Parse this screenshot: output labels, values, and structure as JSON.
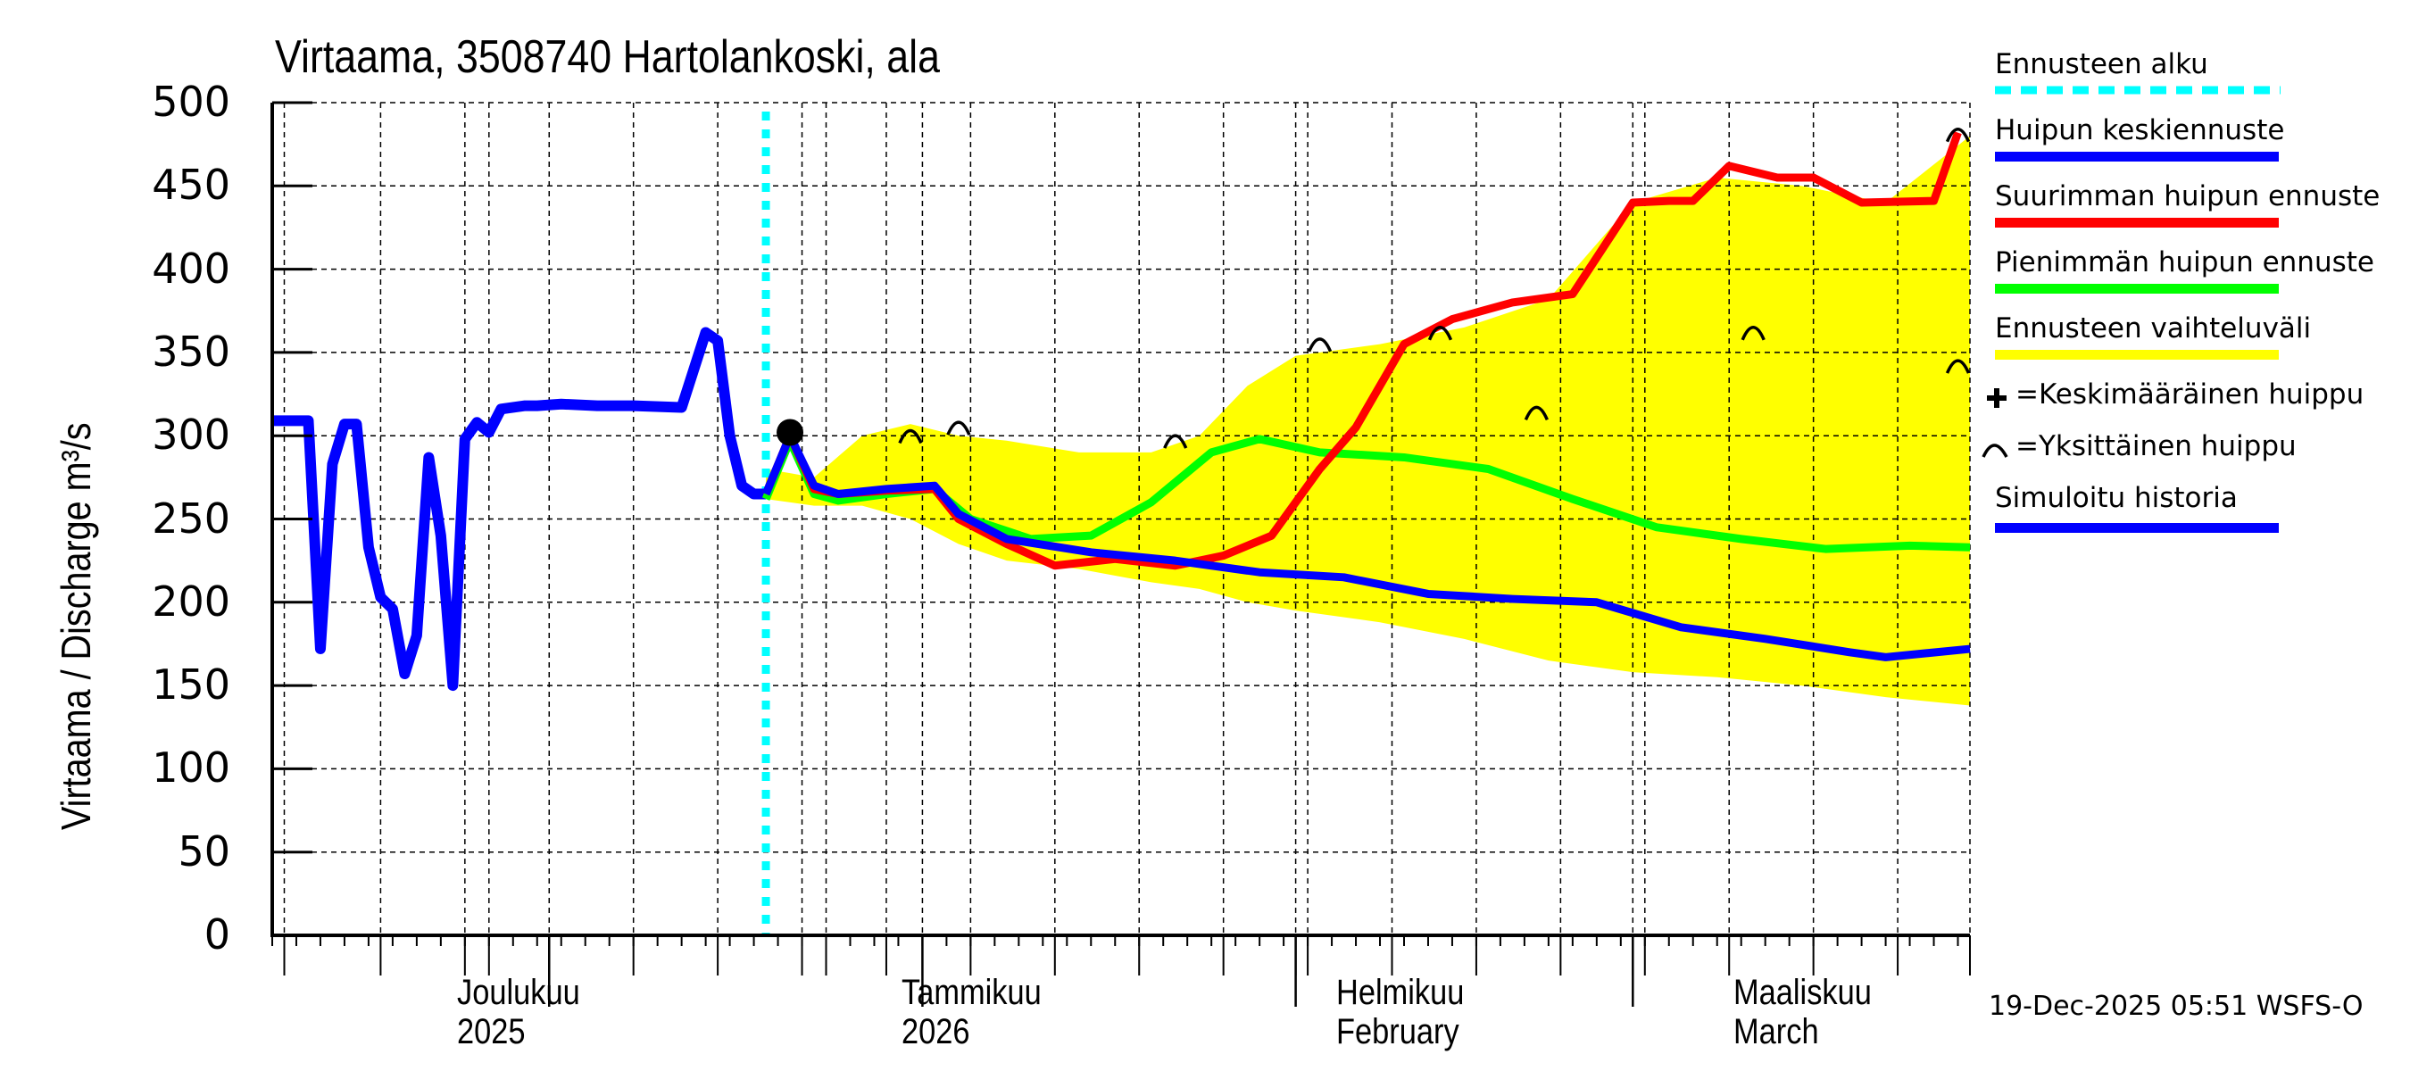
{
  "title": "Virtaama, 3508740 Hartolankoski, ala",
  "y_axis": {
    "label": "Virtaama / Discharge    m³/s",
    "ticks": [
      "500",
      "450",
      "400",
      "350",
      "300",
      "250",
      "200",
      "150",
      "100",
      "50",
      "0"
    ]
  },
  "x_axis": {
    "months": [
      {
        "line1": "Joulukuu",
        "line2": "2025"
      },
      {
        "line1": "Tammikuu",
        "line2": "2026"
      },
      {
        "line1": "Helmikuu",
        "line2": "February"
      },
      {
        "line1": "Maaliskuu",
        "line2": "March"
      }
    ]
  },
  "legend": {
    "forecast_start": "Ennusteen alku",
    "mean_peak": "Huipun keskiennuste",
    "max_peak": "Suurimman huipun ennuste",
    "min_peak": "Pienimmän huipun ennuste",
    "range": "Ennusteen vaihteluväli",
    "avg_peak_marker": "=Keskimääräinen huippu",
    "single_peak_marker": "=Yksittäinen huippu",
    "sim_history": "Simuloitu historia"
  },
  "footer": "19-Dec-2025 05:51 WSFS-O",
  "colors": {
    "forecast_start": "#00ffff",
    "mean": "#0000ff",
    "max": "#ff0000",
    "min": "#00ff00",
    "range": "#ffff00",
    "history": "#0000ff",
    "marker": "#000000"
  },
  "chart_data": {
    "type": "line",
    "title": "Virtaama, 3508740 Hartolankoski, ala",
    "xlabel": "",
    "ylabel": "Virtaama / Discharge m³/s",
    "ylim": [
      0,
      500
    ],
    "xlim": [
      "2025-11-08",
      "2026-03-29"
    ],
    "grid": true,
    "legend_position": "right",
    "forecast_start": "2025-12-19",
    "x_tick_labels": [
      "Joulukuu 2025",
      "Tammikuu 2026",
      "Helmikuu February",
      "Maaliskuu March"
    ],
    "series": [
      {
        "name": "Simuloitu historia",
        "color": "#0000ff",
        "x": [
          "2025-11-08",
          "2025-11-10",
          "2025-11-11",
          "2025-11-12",
          "2025-11-13",
          "2025-11-14",
          "2025-11-15",
          "2025-11-16",
          "2025-11-17",
          "2025-11-18",
          "2025-11-19",
          "2025-11-20",
          "2025-11-21",
          "2025-11-22",
          "2025-11-23",
          "2025-11-24",
          "2025-11-25",
          "2025-11-26",
          "2025-11-27",
          "2025-11-28",
          "2025-11-29",
          "2025-11-30",
          "2025-12-02",
          "2025-12-05",
          "2025-12-08",
          "2025-12-12",
          "2025-12-14",
          "2025-12-15",
          "2025-12-16",
          "2025-12-17",
          "2025-12-18",
          "2025-12-19"
        ],
        "values": [
          309,
          309,
          309,
          172,
          283,
          307,
          307,
          233,
          203,
          196,
          157,
          180,
          287,
          240,
          150,
          298,
          308,
          302,
          316,
          317,
          318,
          318,
          319,
          318,
          318,
          317,
          362,
          357,
          300,
          270,
          265,
          265
        ]
      },
      {
        "name": "Huipun keskiennuste",
        "color": "#0000ff",
        "x": [
          "2025-12-19",
          "2025-12-21",
          "2025-12-23",
          "2025-12-25",
          "2025-12-29",
          "2026-01-02",
          "2026-01-04",
          "2026-01-08",
          "2026-01-15",
          "2026-01-22",
          "2026-01-29",
          "2026-02-05",
          "2026-02-12",
          "2026-02-19",
          "2026-02-26",
          "2026-03-05",
          "2026-03-12",
          "2026-03-19",
          "2026-03-22",
          "2026-03-29"
        ],
        "values": [
          265,
          300,
          270,
          265,
          268,
          270,
          253,
          238,
          230,
          225,
          218,
          215,
          205,
          202,
          200,
          185,
          178,
          170,
          167,
          172
        ]
      },
      {
        "name": "Suurimman huipun ennuste",
        "color": "#ff0000",
        "x": [
          "2025-12-19",
          "2025-12-21",
          "2025-12-23",
          "2025-12-25",
          "2025-12-29",
          "2026-01-02",
          "2026-01-04",
          "2026-01-08",
          "2026-01-12",
          "2026-01-17",
          "2026-01-22",
          "2026-01-26",
          "2026-01-30",
          "2026-02-03",
          "2026-02-06",
          "2026-02-10",
          "2026-02-14",
          "2026-02-19",
          "2026-02-24",
          "2026-03-01",
          "2026-03-04",
          "2026-03-06",
          "2026-03-09",
          "2026-03-13",
          "2026-03-16",
          "2026-03-20",
          "2026-03-26",
          "2026-03-28"
        ],
        "values": [
          265,
          300,
          268,
          265,
          267,
          268,
          250,
          235,
          222,
          226,
          222,
          228,
          240,
          280,
          305,
          355,
          370,
          380,
          385,
          440,
          441,
          441,
          462,
          455,
          455,
          440,
          441,
          482
        ]
      },
      {
        "name": "Pienimmän huipun ennuste",
        "color": "#00ff00",
        "x": [
          "2025-12-19",
          "2025-12-21",
          "2025-12-23",
          "2025-12-25",
          "2025-12-29",
          "2026-01-02",
          "2026-01-05",
          "2026-01-10",
          "2026-01-15",
          "2026-01-20",
          "2026-01-25",
          "2026-01-29",
          "2026-02-03",
          "2026-02-10",
          "2026-02-17",
          "2026-02-24",
          "2026-03-03",
          "2026-03-10",
          "2026-03-17",
          "2026-03-24",
          "2026-03-29"
        ],
        "values": [
          262,
          297,
          265,
          261,
          265,
          268,
          250,
          238,
          240,
          260,
          290,
          298,
          290,
          287,
          280,
          262,
          245,
          238,
          232,
          234,
          233
        ]
      },
      {
        "name": "Ennusteen vaihteluväli",
        "color": "#ffff00",
        "type": "area",
        "x": [
          "2025-12-19",
          "2025-12-23",
          "2025-12-27",
          "2025-12-31",
          "2026-01-04",
          "2026-01-08",
          "2026-01-14",
          "2026-01-20",
          "2026-01-24",
          "2026-01-28",
          "2026-02-01",
          "2026-02-08",
          "2026-02-15",
          "2026-02-22",
          "2026-03-01",
          "2026-03-08",
          "2026-03-15",
          "2026-03-22",
          "2026-03-29"
        ],
        "upper": [
          280,
          275,
          300,
          307,
          300,
          297,
          290,
          290,
          300,
          330,
          348,
          355,
          365,
          382,
          440,
          455,
          450,
          440,
          480
        ],
        "lower": [
          262,
          258,
          258,
          250,
          235,
          225,
          220,
          212,
          208,
          200,
          195,
          188,
          178,
          165,
          158,
          155,
          150,
          143,
          138
        ]
      }
    ],
    "markers": {
      "average_peak": [
        {
          "x": "2025-12-21",
          "y": 302
        }
      ],
      "single_peaks": [
        {
          "x": "2025-12-31",
          "y": 302
        },
        {
          "x": "2026-01-04",
          "y": 307
        },
        {
          "x": "2026-01-22",
          "y": 299
        },
        {
          "x": "2026-02-03",
          "y": 357
        },
        {
          "x": "2026-02-13",
          "y": 364
        },
        {
          "x": "2026-02-21",
          "y": 316
        },
        {
          "x": "2026-03-11",
          "y": 364
        },
        {
          "x": "2026-03-28",
          "y": 344
        },
        {
          "x": "2026-03-28",
          "y": 483
        }
      ]
    }
  }
}
